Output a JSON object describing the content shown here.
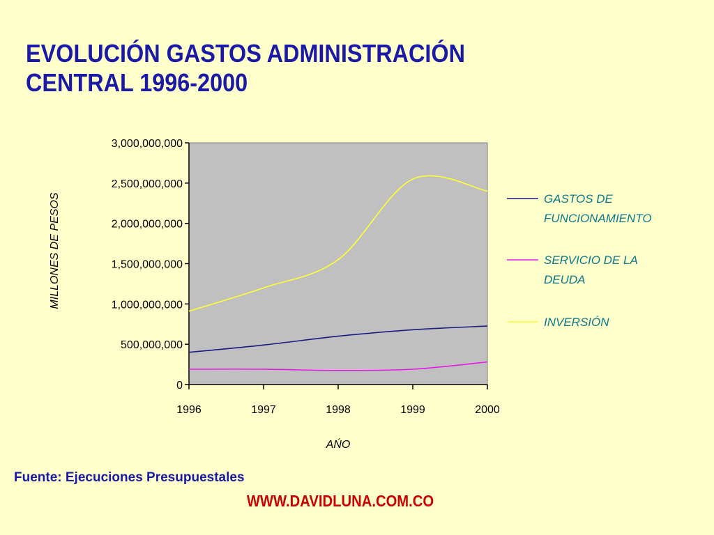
{
  "title": {
    "line1": "EVOLUCIÓN GASTOS ADMINISTRACIÓN",
    "line2": "CENTRAL 1996-2000"
  },
  "source": "Fuente: Ejecuciones Presupuestales",
  "website": "WWW.DAVIDLUNA.COM.CO",
  "colors": {
    "background": "#ffffcc",
    "plot_area": "#c0c0c0",
    "title": "#1a1aa6",
    "legend_text": "#0a7a8a",
    "website": "#cc0000"
  },
  "chart_data": {
    "type": "line",
    "title": "EVOLUCIÓN GASTOS ADMINISTRACIÓN CENTRAL 1996-2000",
    "xlabel": "AŃO",
    "ylabel": "MILLONES DE PESOS",
    "x": [
      1996,
      1997,
      1998,
      1999,
      2000
    ],
    "xtick_labels": [
      "1996",
      "1997",
      "1998",
      "1999",
      "2000"
    ],
    "xlim": [
      1996,
      2000
    ],
    "ylim": [
      0,
      3000000000
    ],
    "yticks": [
      0,
      500000000,
      1000000000,
      1500000000,
      2000000000,
      2500000000,
      3000000000
    ],
    "ytick_labels": [
      "0",
      "500,000,000",
      "1,000,000,000",
      "1,500,000,000",
      "2,000,000,000",
      "2,500,000,000",
      "3,000,000,000"
    ],
    "grid": false,
    "smooth": true,
    "legend_position": "right",
    "series": [
      {
        "name": "GASTOS DE FUNCIONAMIENTO",
        "name_lines": [
          "GASTOS DE",
          "FUNCIONAMIENTO"
        ],
        "color": "#1a1a80",
        "values": [
          400000000,
          490000000,
          600000000,
          680000000,
          725000000
        ]
      },
      {
        "name": "SERVICIO DE LA DEUDA",
        "name_lines": [
          "SERVICIO DE LA",
          "DEUDA"
        ],
        "color": "#e619e6",
        "values": [
          190000000,
          190000000,
          175000000,
          190000000,
          280000000
        ]
      },
      {
        "name": "INVERSIÓN",
        "name_lines": [
          "INVERSIÓN"
        ],
        "color": "#ffff33",
        "values": [
          910000000,
          1200000000,
          1550000000,
          2550000000,
          2400000000
        ]
      }
    ]
  }
}
